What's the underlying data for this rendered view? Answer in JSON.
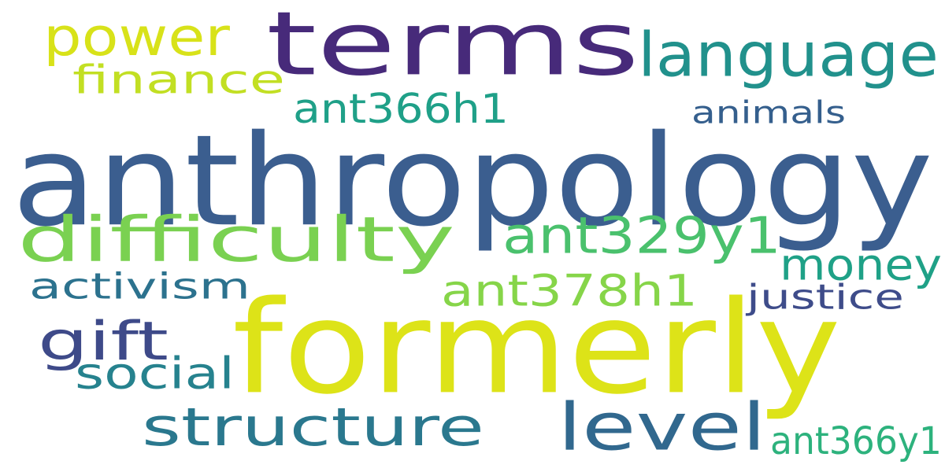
{
  "cloud": {
    "words": [
      {
        "text": "anthropology",
        "color": "#3b5e8f"
      },
      {
        "text": "terms",
        "color": "#472a7a"
      },
      {
        "text": "formerly",
        "color": "#dde318"
      },
      {
        "text": "difficulty",
        "color": "#7ad151"
      },
      {
        "text": "language",
        "color": "#21918c"
      },
      {
        "text": "level",
        "color": "#31688e"
      },
      {
        "text": "structure",
        "color": "#2a788e"
      },
      {
        "text": "power",
        "color": "#d8e219"
      },
      {
        "text": "ant329y1",
        "color": "#4ac16d"
      },
      {
        "text": "money",
        "color": "#1fa187"
      },
      {
        "text": "ant378h1",
        "color": "#86d549"
      },
      {
        "text": "finance",
        "color": "#c2df23"
      },
      {
        "text": "ant366h1",
        "color": "#1fa088"
      },
      {
        "text": "activism",
        "color": "#2c728e"
      },
      {
        "text": "gift",
        "color": "#3e4a89"
      },
      {
        "text": "social",
        "color": "#26828e"
      },
      {
        "text": "animals",
        "color": "#355f8d"
      },
      {
        "text": "justice",
        "color": "#3e4c8a"
      },
      {
        "text": "ant366y1",
        "color": "#2db27d"
      }
    ]
  }
}
